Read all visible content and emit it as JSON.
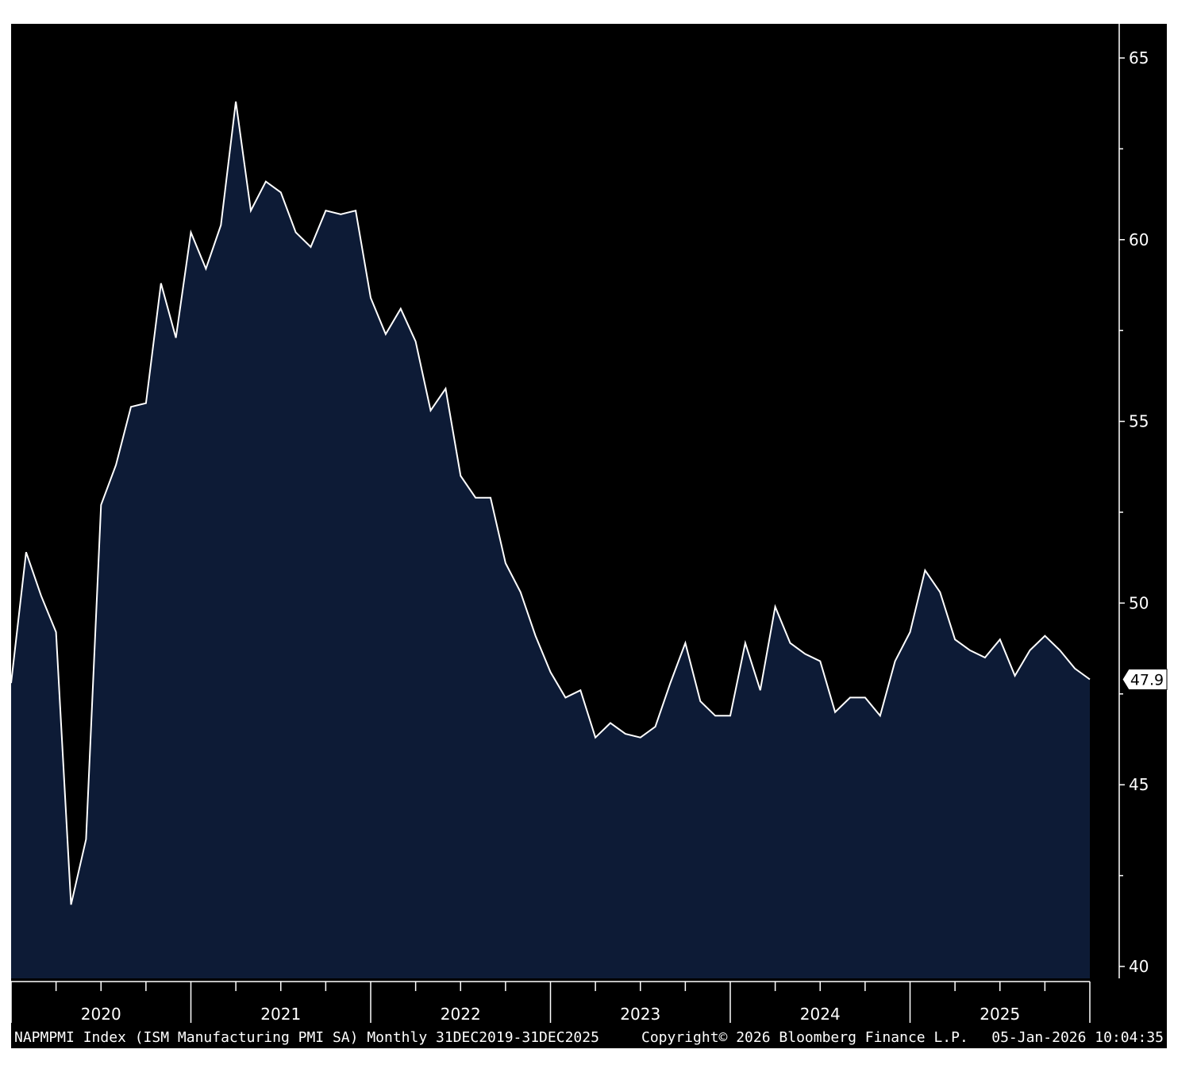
{
  "chart_data": {
    "type": "area",
    "title": "",
    "xlabel": "",
    "ylabel": "",
    "ylim": [
      40,
      66
    ],
    "yticks": [
      40,
      45,
      50,
      55,
      60,
      65
    ],
    "y_tick_labels": [
      "40",
      "45",
      "50",
      "55",
      "60",
      "65"
    ],
    "x_year_labels": [
      "2020",
      "2021",
      "2022",
      "2023",
      "2024",
      "2025"
    ],
    "x_start": "2019-12",
    "x_end": "2025-12",
    "grid": false,
    "legend": "none",
    "series": [
      {
        "x": [
          "2019-12",
          "2020-01",
          "2020-02",
          "2020-03",
          "2020-04",
          "2020-05",
          "2020-06",
          "2020-07",
          "2020-08",
          "2020-09",
          "2020-10",
          "2020-11",
          "2020-12",
          "2021-01",
          "2021-02",
          "2021-03",
          "2021-04",
          "2021-05",
          "2021-06",
          "2021-07",
          "2021-08",
          "2021-09",
          "2021-10",
          "2021-11",
          "2021-12",
          "2022-01",
          "2022-02",
          "2022-03",
          "2022-04",
          "2022-05",
          "2022-06",
          "2022-07",
          "2022-08",
          "2022-09",
          "2022-10",
          "2022-11",
          "2022-12",
          "2023-01",
          "2023-02",
          "2023-03",
          "2023-04",
          "2023-05",
          "2023-06",
          "2023-07",
          "2023-08",
          "2023-09",
          "2023-10",
          "2023-11",
          "2023-12",
          "2024-01",
          "2024-02",
          "2024-03",
          "2024-04",
          "2024-05",
          "2024-06",
          "2024-07",
          "2024-08",
          "2024-09",
          "2024-10",
          "2024-11",
          "2024-12",
          "2025-01",
          "2025-02",
          "2025-03",
          "2025-04",
          "2025-05",
          "2025-06",
          "2025-07",
          "2025-08",
          "2025-09",
          "2025-10",
          "2025-11",
          "2025-12"
        ],
        "values": [
          47.8,
          51.4,
          50.2,
          49.2,
          41.7,
          43.5,
          52.7,
          53.8,
          55.4,
          55.5,
          58.8,
          57.3,
          60.2,
          59.2,
          60.4,
          63.8,
          60.8,
          61.6,
          61.3,
          60.2,
          59.8,
          60.8,
          60.7,
          60.8,
          58.4,
          57.4,
          58.1,
          57.2,
          55.3,
          55.9,
          53.5,
          52.9,
          52.9,
          51.1,
          50.3,
          49.1,
          48.1,
          47.4,
          47.6,
          46.3,
          46.7,
          46.4,
          46.3,
          46.6,
          47.8,
          48.9,
          47.3,
          46.9,
          46.9,
          48.9,
          47.6,
          49.9,
          48.9,
          48.6,
          48.4,
          47.0,
          47.4,
          47.4,
          46.9,
          48.4,
          49.2,
          50.9,
          50.3,
          49.0,
          48.7,
          48.5,
          49.0,
          48.0,
          48.7,
          49.1,
          48.7,
          48.2,
          47.9
        ]
      }
    ],
    "last_value_label": "47.9",
    "colors": {
      "background": "#000000",
      "area_fill": "#0d1b36",
      "line": "#ffffff",
      "axis": "#ffffff",
      "text": "#ffffff",
      "page_background": "#ffffff"
    }
  },
  "footer": {
    "description": "NAPMPMI Index (ISM Manufacturing PMI SA) Monthly 31DEC2019-31DEC2025",
    "copyright": "Copyright© 2026 Bloomberg Finance L.P.",
    "timestamp": "05-Jan-2026 10:04:35"
  }
}
